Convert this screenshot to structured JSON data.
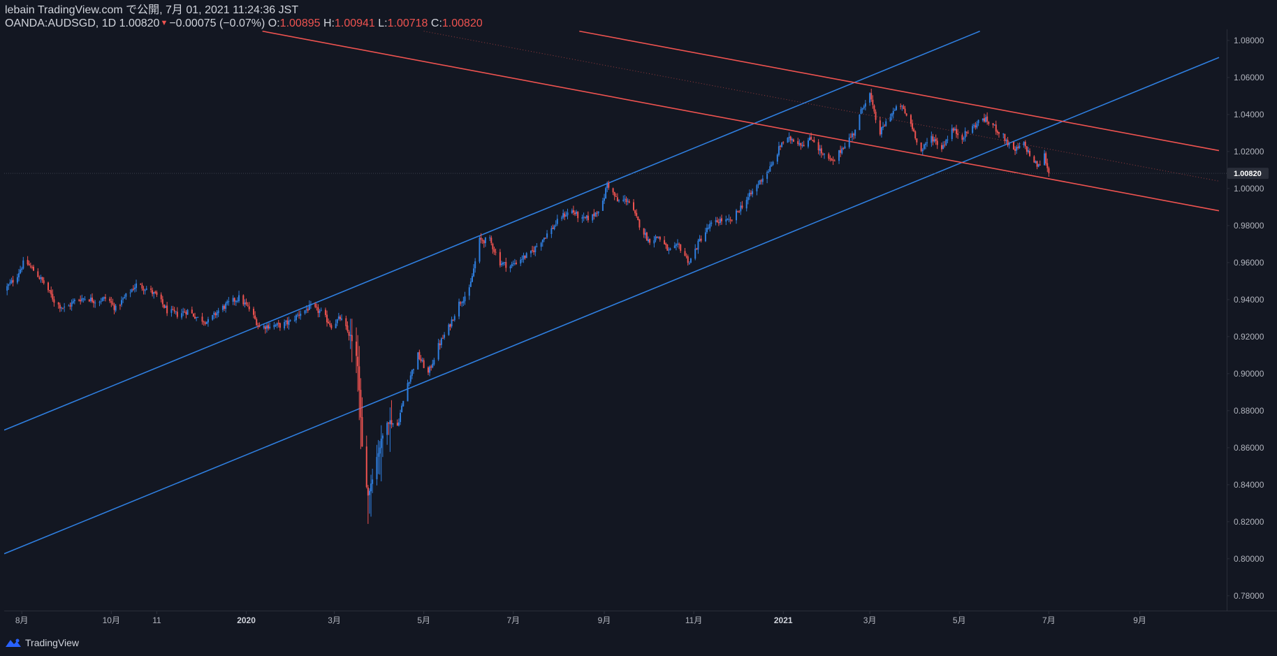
{
  "header": {
    "line1": "lebain TradingView.com で公開, 7月 01, 2021 11:24:36 JST",
    "symbol": "OANDA:AUDSGD, 1D",
    "last": "1.00820",
    "change_arrow": "▼",
    "change": "−0.00075 (−0.07%)",
    "o_label": "O:",
    "o_value": "1.00895",
    "h_label": "H:",
    "h_value": "1.00941",
    "l_label": "L:",
    "l_value": "1.00718",
    "c_label": "C:",
    "c_value": "1.00820"
  },
  "footer": {
    "brand": "TradingView",
    "logo_icon": "tradingview-cloud-icon"
  },
  "colors": {
    "background": "#131722",
    "axis_text": "#b2b5be",
    "up": "#2962ff",
    "up_candle": "#2f7fe0",
    "down": "#ef5350",
    "channel_up": "#2f7fe0",
    "channel_down": "#ef5350",
    "text": "#d1d4dc"
  },
  "chart_data": {
    "type": "candlestick",
    "symbol": "OANDA:AUDSGD",
    "interval": "1D",
    "last_price": 1.0082,
    "last_price_label": "1.00820",
    "ylim": [
      0.772,
      1.086
    ],
    "y_ticks": [
      0.78,
      0.8,
      0.82,
      0.84,
      0.86,
      0.88,
      0.9,
      0.92,
      0.94,
      0.96,
      0.98,
      1.0,
      1.02,
      1.04,
      1.06,
      1.08
    ],
    "y_tick_labels": [
      "0.78000",
      "0.80000",
      "0.82000",
      "0.84000",
      "0.86000",
      "0.88000",
      "0.90000",
      "0.92000",
      "0.94000",
      "0.96000",
      "0.98000",
      "1.00000",
      "1.02000",
      "1.04000",
      "1.06000",
      "1.08000"
    ],
    "x_range": [
      "2019-07-20",
      "2021-10-25"
    ],
    "x_ticks": [
      {
        "date": "2019-08-01",
        "label": "8月",
        "bold": false
      },
      {
        "date": "2019-10-01",
        "label": "10月",
        "bold": false
      },
      {
        "date": "2019-11-01",
        "label": "11",
        "bold": false
      },
      {
        "date": "2020-01-01",
        "label": "2020",
        "bold": true
      },
      {
        "date": "2020-03-01",
        "label": "3月",
        "bold": false
      },
      {
        "date": "2020-05-01",
        "label": "5月",
        "bold": false
      },
      {
        "date": "2020-07-01",
        "label": "7月",
        "bold": false
      },
      {
        "date": "2020-09-01",
        "label": "9月",
        "bold": false
      },
      {
        "date": "2020-11-01",
        "label": "11月",
        "bold": false
      },
      {
        "date": "2021-01-01",
        "label": "2021",
        "bold": true
      },
      {
        "date": "2021-03-01",
        "label": "3月",
        "bold": false
      },
      {
        "date": "2021-05-01",
        "label": "5月",
        "bold": false
      },
      {
        "date": "2021-07-01",
        "label": "7月",
        "bold": false
      },
      {
        "date": "2021-09-01",
        "label": "9月",
        "bold": false
      }
    ],
    "anchors": [
      [
        "2019-07-20",
        0.945
      ],
      [
        "2019-07-28",
        0.952
      ],
      [
        "2019-08-03",
        0.961
      ],
      [
        "2019-08-10",
        0.955
      ],
      [
        "2019-08-17",
        0.948
      ],
      [
        "2019-08-24",
        0.938
      ],
      [
        "2019-08-31",
        0.935
      ],
      [
        "2019-09-07",
        0.94
      ],
      [
        "2019-09-14",
        0.941
      ],
      [
        "2019-09-21",
        0.939
      ],
      [
        "2019-09-28",
        0.941
      ],
      [
        "2019-10-04",
        0.935
      ],
      [
        "2019-10-11",
        0.942
      ],
      [
        "2019-10-18",
        0.948
      ],
      [
        "2019-10-25",
        0.946
      ],
      [
        "2019-11-01",
        0.942
      ],
      [
        "2019-11-08",
        0.934
      ],
      [
        "2019-11-15",
        0.932
      ],
      [
        "2019-11-22",
        0.934
      ],
      [
        "2019-11-29",
        0.93
      ],
      [
        "2019-12-06",
        0.928
      ],
      [
        "2019-12-13",
        0.934
      ],
      [
        "2019-12-20",
        0.938
      ],
      [
        "2019-12-27",
        0.941
      ],
      [
        "2020-01-03",
        0.935
      ],
      [
        "2020-01-10",
        0.925
      ],
      [
        "2020-01-17",
        0.926
      ],
      [
        "2020-01-24",
        0.926
      ],
      [
        "2020-01-31",
        0.928
      ],
      [
        "2020-02-07",
        0.933
      ],
      [
        "2020-02-14",
        0.936
      ],
      [
        "2020-02-21",
        0.933
      ],
      [
        "2020-02-28",
        0.926
      ],
      [
        "2020-03-05",
        0.93
      ],
      [
        "2020-03-12",
        0.92
      ],
      [
        "2020-03-17",
        0.905
      ],
      [
        "2020-03-20",
        0.86
      ],
      [
        "2020-03-24",
        0.834
      ],
      [
        "2020-03-30",
        0.855
      ],
      [
        "2020-04-06",
        0.875
      ],
      [
        "2020-04-13",
        0.872
      ],
      [
        "2020-04-20",
        0.895
      ],
      [
        "2020-04-27",
        0.91
      ],
      [
        "2020-05-04",
        0.9
      ],
      [
        "2020-05-11",
        0.915
      ],
      [
        "2020-05-18",
        0.925
      ],
      [
        "2020-05-25",
        0.938
      ],
      [
        "2020-06-01",
        0.945
      ],
      [
        "2020-06-08",
        0.972
      ],
      [
        "2020-06-15",
        0.972
      ],
      [
        "2020-06-22",
        0.96
      ],
      [
        "2020-06-29",
        0.958
      ],
      [
        "2020-07-06",
        0.962
      ],
      [
        "2020-07-13",
        0.965
      ],
      [
        "2020-07-20",
        0.972
      ],
      [
        "2020-07-27",
        0.978
      ],
      [
        "2020-08-03",
        0.985
      ],
      [
        "2020-08-10",
        0.988
      ],
      [
        "2020-08-17",
        0.983
      ],
      [
        "2020-08-24",
        0.985
      ],
      [
        "2020-08-31",
        0.992
      ],
      [
        "2020-09-03",
        1.003
      ],
      [
        "2020-09-10",
        0.993
      ],
      [
        "2020-09-17",
        0.994
      ],
      [
        "2020-09-24",
        0.982
      ],
      [
        "2020-10-01",
        0.972
      ],
      [
        "2020-10-08",
        0.974
      ],
      [
        "2020-10-15",
        0.966
      ],
      [
        "2020-10-22",
        0.969
      ],
      [
        "2020-10-29",
        0.96
      ],
      [
        "2020-11-05",
        0.972
      ],
      [
        "2020-11-12",
        0.98
      ],
      [
        "2020-11-19",
        0.983
      ],
      [
        "2020-11-26",
        0.982
      ],
      [
        "2020-12-03",
        0.99
      ],
      [
        "2020-12-10",
        0.997
      ],
      [
        "2020-12-17",
        1.005
      ],
      [
        "2020-12-24",
        1.012
      ],
      [
        "2020-12-31",
        1.025
      ],
      [
        "2021-01-07",
        1.027
      ],
      [
        "2021-01-14",
        1.024
      ],
      [
        "2021-01-21",
        1.027
      ],
      [
        "2021-01-28",
        1.018
      ],
      [
        "2021-02-04",
        1.014
      ],
      [
        "2021-02-11",
        1.023
      ],
      [
        "2021-02-18",
        1.03
      ],
      [
        "2021-02-25",
        1.046
      ],
      [
        "2021-03-01",
        1.051
      ],
      [
        "2021-03-04",
        1.04
      ],
      [
        "2021-03-08",
        1.03
      ],
      [
        "2021-03-15",
        1.04
      ],
      [
        "2021-03-22",
        1.045
      ],
      [
        "2021-03-29",
        1.035
      ],
      [
        "2021-04-05",
        1.02
      ],
      [
        "2021-04-12",
        1.028
      ],
      [
        "2021-04-19",
        1.022
      ],
      [
        "2021-04-26",
        1.032
      ],
      [
        "2021-05-03",
        1.028
      ],
      [
        "2021-05-10",
        1.033
      ],
      [
        "2021-05-17",
        1.038
      ],
      [
        "2021-05-24",
        1.034
      ],
      [
        "2021-05-31",
        1.028
      ],
      [
        "2021-06-07",
        1.02
      ],
      [
        "2021-06-14",
        1.024
      ],
      [
        "2021-06-21",
        1.014
      ],
      [
        "2021-06-24",
        1.012
      ],
      [
        "2021-06-28",
        1.018
      ],
      [
        "2021-07-01",
        1.0082
      ]
    ],
    "trend_lines": [
      {
        "name": "channel-up-upper",
        "color": "blue",
        "dashed": false,
        "p1": [
          "2019-07-20",
          0.8695
        ],
        "p2": [
          "2021-05-15",
          1.085
        ]
      },
      {
        "name": "channel-up-lower",
        "color": "blue",
        "dashed": false,
        "p1": [
          "2019-07-20",
          0.8027
        ],
        "p2": [
          "2021-10-25",
          1.0708
        ]
      },
      {
        "name": "channel-down-upper",
        "color": "red",
        "dashed": false,
        "p1": [
          "2020-08-15",
          1.085
        ],
        "p2": [
          "2021-10-25",
          1.0205
        ]
      },
      {
        "name": "channel-down-lower",
        "color": "red",
        "dashed": false,
        "p1": [
          "2020-01-12",
          1.085
        ],
        "p2": [
          "2021-10-25",
          0.988
        ]
      },
      {
        "name": "channel-down-mid",
        "color": "red",
        "dashed": true,
        "p1": [
          "2020-05-01",
          1.085
        ],
        "p2": [
          "2021-10-25",
          1.004
        ]
      }
    ]
  }
}
